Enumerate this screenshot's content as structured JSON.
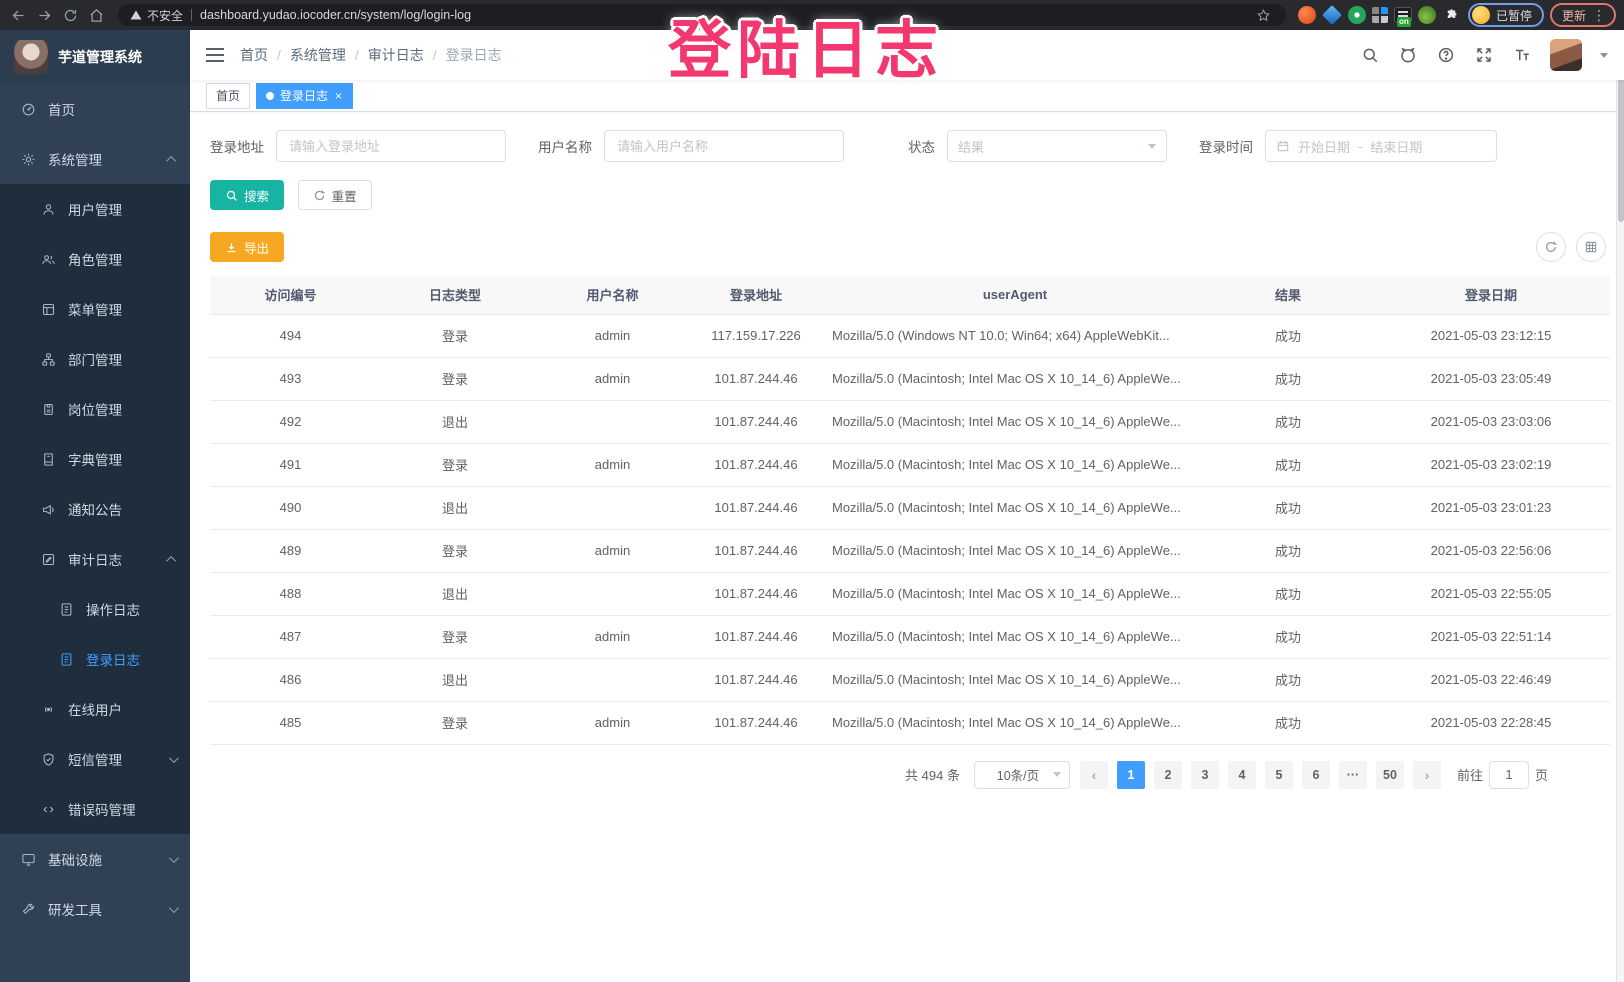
{
  "colors": {
    "accent": "#409EFF",
    "teal": "#17B3A3",
    "amber": "#F6A823",
    "pink": "#F2386E"
  },
  "annotation": {
    "title": "登陆日志"
  },
  "browser": {
    "security_label": "不安全",
    "url": "dashboard.yudao.iocoder.cn/system/log/login-log",
    "extension_badge": "on",
    "profile_status": "已暂停",
    "update_label": "更新"
  },
  "sidebar": {
    "app_title": "芋道管理系统",
    "items": [
      {
        "label": "首页",
        "icon": "dashboard",
        "level": 0
      },
      {
        "label": "系统管理",
        "icon": "gear",
        "level": 0,
        "arrow": "up"
      },
      {
        "label": "用户管理",
        "icon": "user",
        "level": 1
      },
      {
        "label": "角色管理",
        "icon": "users",
        "level": 1
      },
      {
        "label": "菜单管理",
        "icon": "menu-panel",
        "level": 1
      },
      {
        "label": "部门管理",
        "icon": "org-tree",
        "level": 1
      },
      {
        "label": "岗位管理",
        "icon": "badge",
        "level": 1
      },
      {
        "label": "字典管理",
        "icon": "dictionary",
        "level": 1
      },
      {
        "label": "通知公告",
        "icon": "megaphone",
        "level": 1
      },
      {
        "label": "审计日志",
        "icon": "audit",
        "level": 1,
        "arrow": "up"
      },
      {
        "label": "操作日志",
        "icon": "document",
        "level": 2
      },
      {
        "label": "登录日志",
        "icon": "document",
        "level": 2,
        "active": true
      },
      {
        "label": "在线用户",
        "icon": "online",
        "level": 1
      },
      {
        "label": "短信管理",
        "icon": "shield-check",
        "level": 1,
        "arrow": "down"
      },
      {
        "label": "错误码管理",
        "icon": "code",
        "level": 1
      },
      {
        "label": "基础设施",
        "icon": "monitor",
        "level": 0,
        "arrow": "down"
      },
      {
        "label": "研发工具",
        "icon": "wrench",
        "level": 0,
        "arrow": "down"
      }
    ]
  },
  "navbar": {
    "breadcrumb": [
      "首页",
      "系统管理",
      "审计日志",
      "登录日志"
    ]
  },
  "tags": [
    {
      "label": "首页",
      "active": false,
      "closable": false
    },
    {
      "label": "登录日志",
      "active": true,
      "closable": true
    }
  ],
  "filters": {
    "login_address_label": "登录地址",
    "login_address_placeholder": "请输入登录地址",
    "username_label": "用户名称",
    "username_placeholder": "请输入用户名称",
    "status_label": "状态",
    "status_placeholder": "结果",
    "login_time_label": "登录时间",
    "date_start_placeholder": "开始日期",
    "date_separator": "-",
    "date_end_placeholder": "结束日期",
    "search_button": "搜索",
    "reset_button": "重置"
  },
  "toolbar": {
    "export_button": "导出"
  },
  "table": {
    "headers": [
      "访问编号",
      "日志类型",
      "用户名称",
      "登录地址",
      "userAgent",
      "结果",
      "登录日期"
    ],
    "rows": [
      [
        "494",
        "登录",
        "admin",
        "117.159.17.226",
        "Mozilla/5.0 (Windows NT 10.0; Win64; x64) AppleWebKit...",
        "成功",
        "2021-05-03 23:12:15"
      ],
      [
        "493",
        "登录",
        "admin",
        "101.87.244.46",
        "Mozilla/5.0 (Macintosh; Intel Mac OS X 10_14_6) AppleWe...",
        "成功",
        "2021-05-03 23:05:49"
      ],
      [
        "492",
        "退出",
        "",
        "101.87.244.46",
        "Mozilla/5.0 (Macintosh; Intel Mac OS X 10_14_6) AppleWe...",
        "成功",
        "2021-05-03 23:03:06"
      ],
      [
        "491",
        "登录",
        "admin",
        "101.87.244.46",
        "Mozilla/5.0 (Macintosh; Intel Mac OS X 10_14_6) AppleWe...",
        "成功",
        "2021-05-03 23:02:19"
      ],
      [
        "490",
        "退出",
        "",
        "101.87.244.46",
        "Mozilla/5.0 (Macintosh; Intel Mac OS X 10_14_6) AppleWe...",
        "成功",
        "2021-05-03 23:01:23"
      ],
      [
        "489",
        "登录",
        "admin",
        "101.87.244.46",
        "Mozilla/5.0 (Macintosh; Intel Mac OS X 10_14_6) AppleWe...",
        "成功",
        "2021-05-03 22:56:06"
      ],
      [
        "488",
        "退出",
        "",
        "101.87.244.46",
        "Mozilla/5.0 (Macintosh; Intel Mac OS X 10_14_6) AppleWe...",
        "成功",
        "2021-05-03 22:55:05"
      ],
      [
        "487",
        "登录",
        "admin",
        "101.87.244.46",
        "Mozilla/5.0 (Macintosh; Intel Mac OS X 10_14_6) AppleWe...",
        "成功",
        "2021-05-03 22:51:14"
      ],
      [
        "486",
        "退出",
        "",
        "101.87.244.46",
        "Mozilla/5.0 (Macintosh; Intel Mac OS X 10_14_6) AppleWe...",
        "成功",
        "2021-05-03 22:46:49"
      ],
      [
        "485",
        "登录",
        "admin",
        "101.87.244.46",
        "Mozilla/5.0 (Macintosh; Intel Mac OS X 10_14_6) AppleWe...",
        "成功",
        "2021-05-03 22:28:45"
      ]
    ]
  },
  "pagination": {
    "total": "共 494 条",
    "page_size": "10条/页",
    "pages": [
      "1",
      "2",
      "3",
      "4",
      "5",
      "6",
      "···",
      "50"
    ],
    "active": "1",
    "prev": "‹",
    "next": "›",
    "goto_label": "前往",
    "goto_value": "1",
    "goto_suffix": "页"
  }
}
